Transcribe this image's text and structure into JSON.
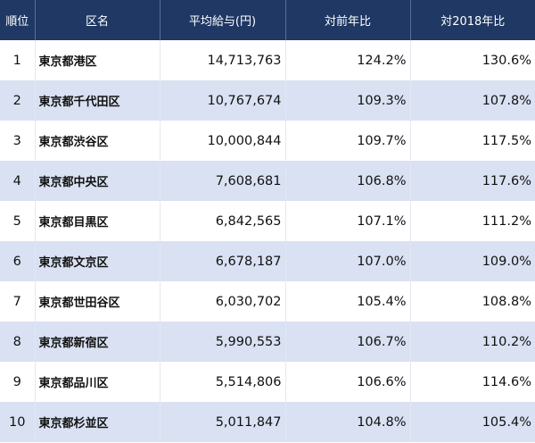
{
  "headers": [
    "順位",
    "区名",
    "平均給与(円)",
    "対前年比",
    "対2018年比"
  ],
  "colors": {
    "header_bg": "#1f3864",
    "alt_row_bg": "#d9e1f2"
  },
  "rows": [
    {
      "rank": "1",
      "name": "東京都港区",
      "salary": "14,713,763",
      "yoy": "124.2%",
      "vs2018": "130.6%"
    },
    {
      "rank": "2",
      "name": "東京都千代田区",
      "salary": "10,767,674",
      "yoy": "109.3%",
      "vs2018": "107.8%"
    },
    {
      "rank": "3",
      "name": "東京都渋谷区",
      "salary": "10,000,844",
      "yoy": "109.7%",
      "vs2018": "117.5%"
    },
    {
      "rank": "4",
      "name": "東京都中央区",
      "salary": "7,608,681",
      "yoy": "106.8%",
      "vs2018": "117.6%"
    },
    {
      "rank": "5",
      "name": "東京都目黒区",
      "salary": "6,842,565",
      "yoy": "107.1%",
      "vs2018": "111.2%"
    },
    {
      "rank": "6",
      "name": "東京都文京区",
      "salary": "6,678,187",
      "yoy": "107.0%",
      "vs2018": "109.0%"
    },
    {
      "rank": "7",
      "name": "東京都世田谷区",
      "salary": "6,030,702",
      "yoy": "105.4%",
      "vs2018": "108.8%"
    },
    {
      "rank": "8",
      "name": "東京都新宿区",
      "salary": "5,990,553",
      "yoy": "106.7%",
      "vs2018": "110.2%"
    },
    {
      "rank": "9",
      "name": "東京都品川区",
      "salary": "5,514,806",
      "yoy": "106.6%",
      "vs2018": "114.6%"
    },
    {
      "rank": "10",
      "name": "東京都杉並区",
      "salary": "5,011,847",
      "yoy": "104.8%",
      "vs2018": "105.4%"
    }
  ]
}
